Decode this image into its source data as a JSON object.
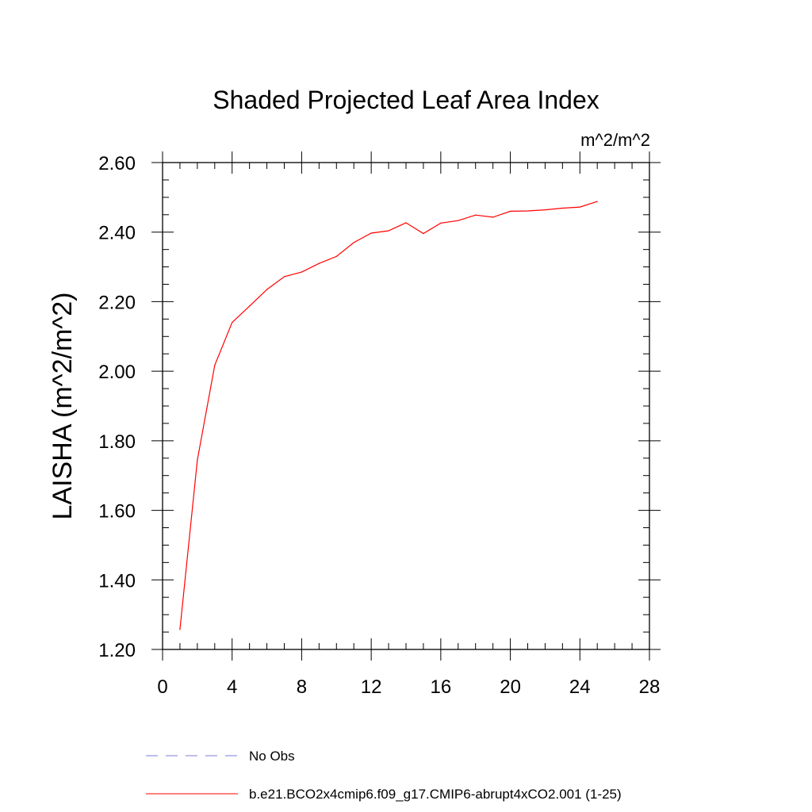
{
  "chart_data": {
    "type": "line",
    "title": "Shaded Projected Leaf Area Index",
    "units": "m^2/m^2",
    "ylabel": "LAISHA  (m^2/m^2)",
    "xlabel": "",
    "xlim": [
      0,
      28
    ],
    "ylim": [
      1.2,
      2.6
    ],
    "xticks": [
      0,
      4,
      8,
      12,
      16,
      20,
      24,
      28
    ],
    "xtick_labels": [
      "0",
      "4",
      "8",
      "12",
      "16",
      "20",
      "24",
      "28"
    ],
    "yticks": [
      1.2,
      1.4,
      1.6,
      1.8,
      2.0,
      2.2,
      2.4,
      2.6
    ],
    "ytick_labels": [
      "1.20",
      "1.40",
      "1.60",
      "1.80",
      "2.00",
      "2.20",
      "2.40",
      "2.60"
    ],
    "x_minor_step": 1,
    "y_minor_step": 0.05,
    "grid": false,
    "legend_position": "bottom",
    "series": [
      {
        "name": "No Obs",
        "color": "#7b7bd8",
        "dash": "dashed",
        "x": [],
        "y": []
      },
      {
        "name": "b.e21.BCO2x4cmip6.f09_g17.CMIP6-abrupt4xCO2.001 (1-25)",
        "color": "#ff0000",
        "dash": "solid",
        "x": [
          1,
          2,
          3,
          4,
          5,
          6,
          7,
          8,
          9,
          10,
          11,
          12,
          13,
          14,
          15,
          16,
          17,
          18,
          19,
          20,
          21,
          22,
          23,
          24,
          25
        ],
        "y": [
          1.257,
          1.745,
          2.017,
          2.14,
          2.187,
          2.235,
          2.272,
          2.285,
          2.31,
          2.33,
          2.37,
          2.397,
          2.404,
          2.427,
          2.396,
          2.426,
          2.433,
          2.449,
          2.443,
          2.46,
          2.461,
          2.464,
          2.469,
          2.472,
          2.488
        ]
      }
    ]
  }
}
